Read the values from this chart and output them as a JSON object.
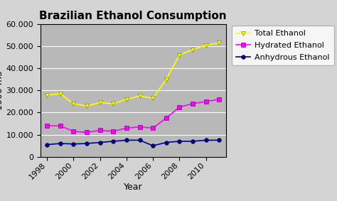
{
  "title": "Brazilian Ethanol Consumption",
  "xlabel": "Year",
  "years": [
    1998,
    1999,
    2000,
    2001,
    2002,
    2003,
    2004,
    2005,
    2006,
    2007,
    2008,
    2009,
    2010,
    2011
  ],
  "total_ethanol": [
    28000,
    28500,
    24000,
    23000,
    24500,
    24000,
    26000,
    27500,
    26500,
    35000,
    46000,
    48500,
    50500,
    51500
  ],
  "hydrated_ethanol": [
    14000,
    14000,
    11500,
    11000,
    12000,
    11500,
    13000,
    13500,
    13000,
    17500,
    22500,
    24000,
    25000,
    26000
  ],
  "anhydrous_ethanol": [
    5500,
    6000,
    5800,
    6000,
    6500,
    7000,
    7500,
    7500,
    5000,
    6500,
    7000,
    7000,
    7500,
    7500
  ],
  "total_color": "#ffff00",
  "hydrated_color": "#ff00ff",
  "anhydrous_color": "#000099",
  "plot_bg_color": "#b8b8b8",
  "fig_bg_color": "#d4d4d4",
  "ylim": [
    0,
    60000
  ],
  "yticks": [
    0,
    10000,
    20000,
    30000,
    40000,
    50000,
    60000
  ],
  "xticks": [
    1998,
    2000,
    2002,
    2004,
    2006,
    2008,
    2010
  ],
  "xlim": [
    1997.5,
    2011.5
  ],
  "legend_labels": [
    "Total Ethanol",
    "Hydrated Ethanol",
    "Anhydrous Ethanol"
  ],
  "title_fontsize": 11,
  "axis_fontsize": 9,
  "tick_fontsize": 8,
  "legend_fontsize": 8
}
